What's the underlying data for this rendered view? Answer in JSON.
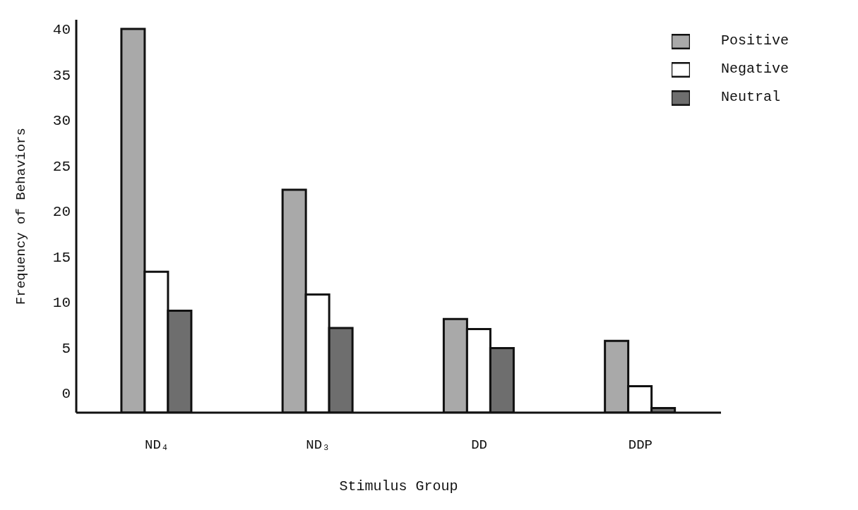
{
  "chart_data": {
    "type": "bar",
    "xlabel": "Stimulus Group",
    "ylabel": "Frequency of Behaviors",
    "categories": [
      "ND₄",
      "ND₃",
      "DD",
      "DDP"
    ],
    "series": [
      {
        "name": "Positive",
        "color": "#a9a9a9",
        "base": [
          -2.2,
          -2.2,
          -2.2,
          -2.2
        ],
        "values": [
          42.2,
          24.5,
          10.3,
          7.9
        ]
      },
      {
        "name": "Negative",
        "color": "#ffffff",
        "base": [
          -2.2,
          -2.2,
          -2.2,
          -2.2
        ],
        "values": [
          15.5,
          13,
          9.2,
          2.9
        ]
      },
      {
        "name": "Neutral",
        "color": "#6e6e6e",
        "base": [
          -2.2,
          -2.2,
          -2.2,
          -2.2
        ],
        "values": [
          11.2,
          9.3,
          7.1,
          0.5
        ]
      }
    ],
    "ylim": [
      -2.2,
      41
    ],
    "yticks": [
      0,
      5,
      10,
      15,
      20,
      25,
      30,
      35,
      40
    ],
    "grid": false,
    "legend": "top right"
  }
}
